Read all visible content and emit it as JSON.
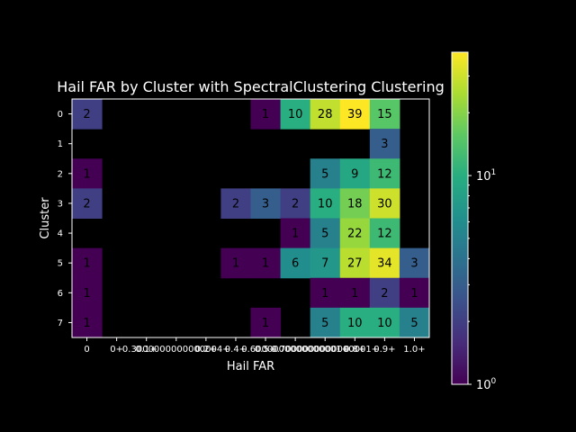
{
  "chart_data": {
    "type": "heatmap",
    "title": "Hail FAR by Cluster with SpectralClustering Clustering",
    "xlabel": "Hail FAR",
    "ylabel": "Cluster",
    "x_tick_labels": [
      "0",
      "0+",
      "0.1+",
      "0.3000000000000004+",
      "0.2+",
      "0.4+",
      "0.5+",
      "0.6000000000000001+",
      "0.7000000000000001+",
      "0.8+",
      "0.9+",
      "1.0+"
    ],
    "y_tick_labels": [
      "0",
      "1",
      "2",
      "3",
      "4",
      "5",
      "6",
      "7"
    ],
    "values": [
      [
        2,
        null,
        null,
        null,
        null,
        null,
        1,
        10,
        28,
        39,
        15,
        null
      ],
      [
        null,
        null,
        null,
        null,
        null,
        null,
        null,
        null,
        null,
        null,
        3,
        null
      ],
      [
        1,
        null,
        null,
        null,
        null,
        null,
        null,
        null,
        5,
        9,
        12,
        null
      ],
      [
        2,
        null,
        null,
        null,
        null,
        2,
        3,
        2,
        10,
        18,
        30,
        null
      ],
      [
        null,
        null,
        null,
        null,
        null,
        null,
        null,
        1,
        5,
        22,
        12,
        null
      ],
      [
        1,
        null,
        null,
        null,
        null,
        1,
        1,
        6,
        7,
        27,
        34,
        3
      ],
      [
        1,
        null,
        null,
        null,
        null,
        null,
        null,
        null,
        1,
        1,
        2,
        1
      ],
      [
        1,
        null,
        null,
        null,
        null,
        null,
        1,
        null,
        5,
        10,
        10,
        5
      ]
    ],
    "color_scale": "log",
    "colormap": "viridis",
    "vmin": 1,
    "vmax": 39,
    "colorbar_ticks": [
      {
        "value": 1,
        "base": "10",
        "exp": "0"
      },
      {
        "value": 10,
        "base": "10",
        "exp": "1"
      }
    ]
  }
}
